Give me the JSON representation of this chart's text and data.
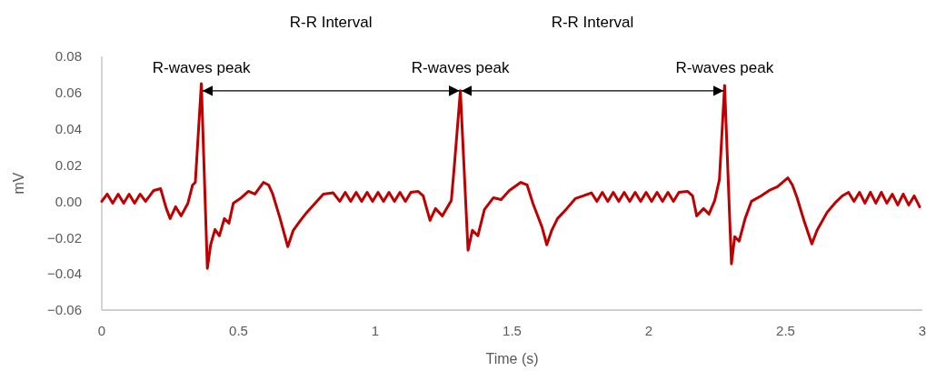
{
  "chart_data": {
    "type": "line",
    "xlabel": "Time (s)",
    "ylabel": "mV",
    "xlim": [
      0,
      3
    ],
    "xticks": [
      0,
      0.5,
      1,
      1.5,
      2,
      2.5,
      3
    ],
    "ylim": [
      -0.06,
      0.08
    ],
    "yticks": [
      {
        "value": -0.06,
        "label": "−0.06"
      },
      {
        "value": -0.04,
        "label": "−0.04"
      },
      {
        "value": -0.02,
        "label": "−0.02"
      },
      {
        "value": 0,
        "label": "0.00"
      },
      0.02,
      0.04,
      0.06,
      0.08
    ],
    "grid": false,
    "marker": "none",
    "line_style": "solid",
    "series": [
      {
        "color": "#c00000",
        "x": [
          0,
          0.02,
          0.04,
          0.06,
          0.08,
          0.1,
          0.12,
          0.14,
          0.16,
          0.19,
          0.215,
          0.236,
          0.25,
          0.27,
          0.29,
          0.315,
          0.332,
          0.342,
          0.364,
          0.386,
          0.398,
          0.414,
          0.43,
          0.448,
          0.465,
          0.481,
          0.51,
          0.536,
          0.56,
          0.591,
          0.61,
          0.625,
          0.652,
          0.68,
          0.7,
          0.724,
          0.75,
          0.78,
          0.81,
          0.846,
          0.87,
          0.89,
          0.91,
          0.93,
          0.95,
          0.97,
          0.99,
          1.01,
          1.03,
          1.05,
          1.07,
          1.09,
          1.11,
          1.13,
          1.156,
          1.175,
          1.2,
          1.22,
          1.245,
          1.278,
          1.289,
          1.311,
          1.339,
          1.355,
          1.375,
          1.399,
          1.432,
          1.46,
          1.49,
          1.532,
          1.555,
          1.576,
          1.61,
          1.627,
          1.645,
          1.666,
          1.7,
          1.731,
          1.76,
          1.79,
          1.81,
          1.83,
          1.85,
          1.87,
          1.89,
          1.91,
          1.93,
          1.95,
          1.97,
          1.99,
          2.01,
          2.03,
          2.05,
          2.07,
          2.09,
          2.11,
          2.141,
          2.16,
          2.175,
          2.2,
          2.22,
          2.241,
          2.258,
          2.277,
          2.302,
          2.314,
          2.33,
          2.352,
          2.375,
          2.41,
          2.44,
          2.47,
          2.508,
          2.525,
          2.542,
          2.568,
          2.596,
          2.615,
          2.652,
          2.68,
          2.707,
          2.73,
          2.75,
          2.77,
          2.79,
          2.81,
          2.83,
          2.85,
          2.87,
          2.89,
          2.91,
          2.93,
          2.95,
          2.97,
          2.99
        ],
        "values": [
          0,
          0.004,
          -0.001,
          0.004,
          -0.001,
          0.004,
          -0.001,
          0.004,
          0,
          0.006,
          0.007,
          -0.004,
          -0.0095,
          -0.003,
          -0.008,
          -0.001,
          0.009,
          0.0105,
          0.065,
          -0.037,
          -0.024,
          -0.0155,
          -0.019,
          -0.0095,
          -0.012,
          -0.001,
          0.002,
          0.0055,
          0.004,
          0.0105,
          0.009,
          0.004,
          -0.0095,
          -0.025,
          -0.016,
          -0.011,
          -0.006,
          -0.001,
          0.004,
          0.0047,
          0,
          0.005,
          0,
          0.005,
          0,
          0.005,
          0,
          0.005,
          0,
          0.005,
          0,
          0.005,
          0,
          0.005,
          0.0055,
          0.003,
          -0.0105,
          -0.004,
          -0.008,
          0.0005,
          0.0197,
          0.061,
          -0.027,
          -0.016,
          -0.019,
          -0.0045,
          0.002,
          0.001,
          0.006,
          0.0105,
          0.009,
          -0.001,
          -0.0145,
          -0.024,
          -0.016,
          -0.0095,
          -0.004,
          0.0015,
          0.003,
          0.0047,
          0,
          0.005,
          0,
          0.005,
          0,
          0.005,
          0,
          0.005,
          0,
          0.005,
          0,
          0.005,
          0,
          0.005,
          0,
          0.005,
          0.0055,
          0.003,
          -0.008,
          -0.004,
          -0.007,
          0.0005,
          0.012,
          0.064,
          -0.0345,
          -0.0195,
          -0.022,
          -0.0095,
          0,
          0.003,
          0.006,
          0.008,
          0.013,
          0.009,
          0.002,
          -0.011,
          -0.0235,
          -0.016,
          -0.006,
          -0.001,
          0.003,
          0.005,
          0,
          0.005,
          -0.001,
          0.005,
          -0.001,
          0.005,
          -0.001,
          0.004,
          -0.002,
          0.004,
          -0.002,
          0.003,
          -0.003
        ]
      }
    ],
    "annotations": [
      {
        "text": "R-waves peak",
        "x": 0.364,
        "y": 0.065
      },
      {
        "text": "R-waves peak",
        "x": 1.311,
        "y": 0.061
      },
      {
        "text": "R-waves peak",
        "x": 2.277,
        "y": 0.064
      },
      "R-R Interval",
      "R-R Interval"
    ]
  }
}
